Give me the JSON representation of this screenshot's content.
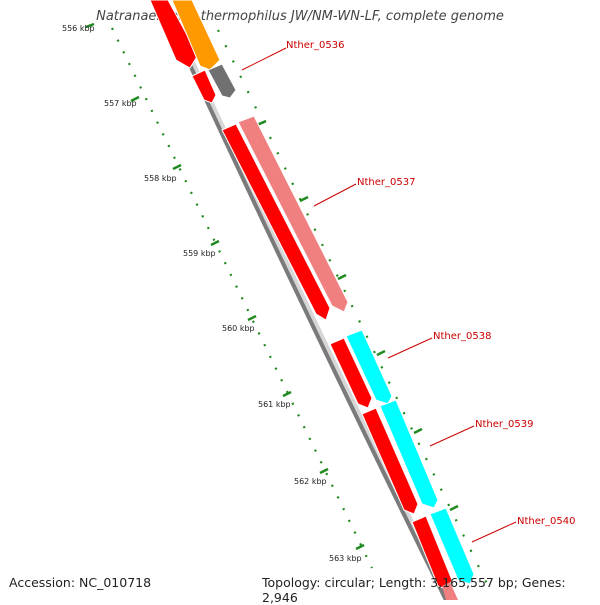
{
  "title": "Natranaerobius thermophilus JW/NM-WN-LF, complete genome",
  "footer": {
    "accession": "Accession: NC_010718",
    "summary": "Topology: circular; Length: 3,165,557 bp; Genes: 2,946"
  },
  "ticks": [
    "556 kbp",
    "557 kbp",
    "558 kbp",
    "559 kbp",
    "560 kbp",
    "561 kbp",
    "562 kbp",
    "563 kbp"
  ],
  "genes": [
    "Nther_0536",
    "Nther_0537",
    "Nther_0538",
    "Nther_0539",
    "Nther_0540"
  ],
  "colors": {
    "backbone": "#7a7a7a",
    "cds_red": "#ff0000",
    "orange": "#ff9900",
    "gray_feature": "#707070",
    "pink": "#f08080",
    "cyan": "#00ffff",
    "tick_green": "#1f8a1f",
    "label_red": "#cc0000"
  }
}
